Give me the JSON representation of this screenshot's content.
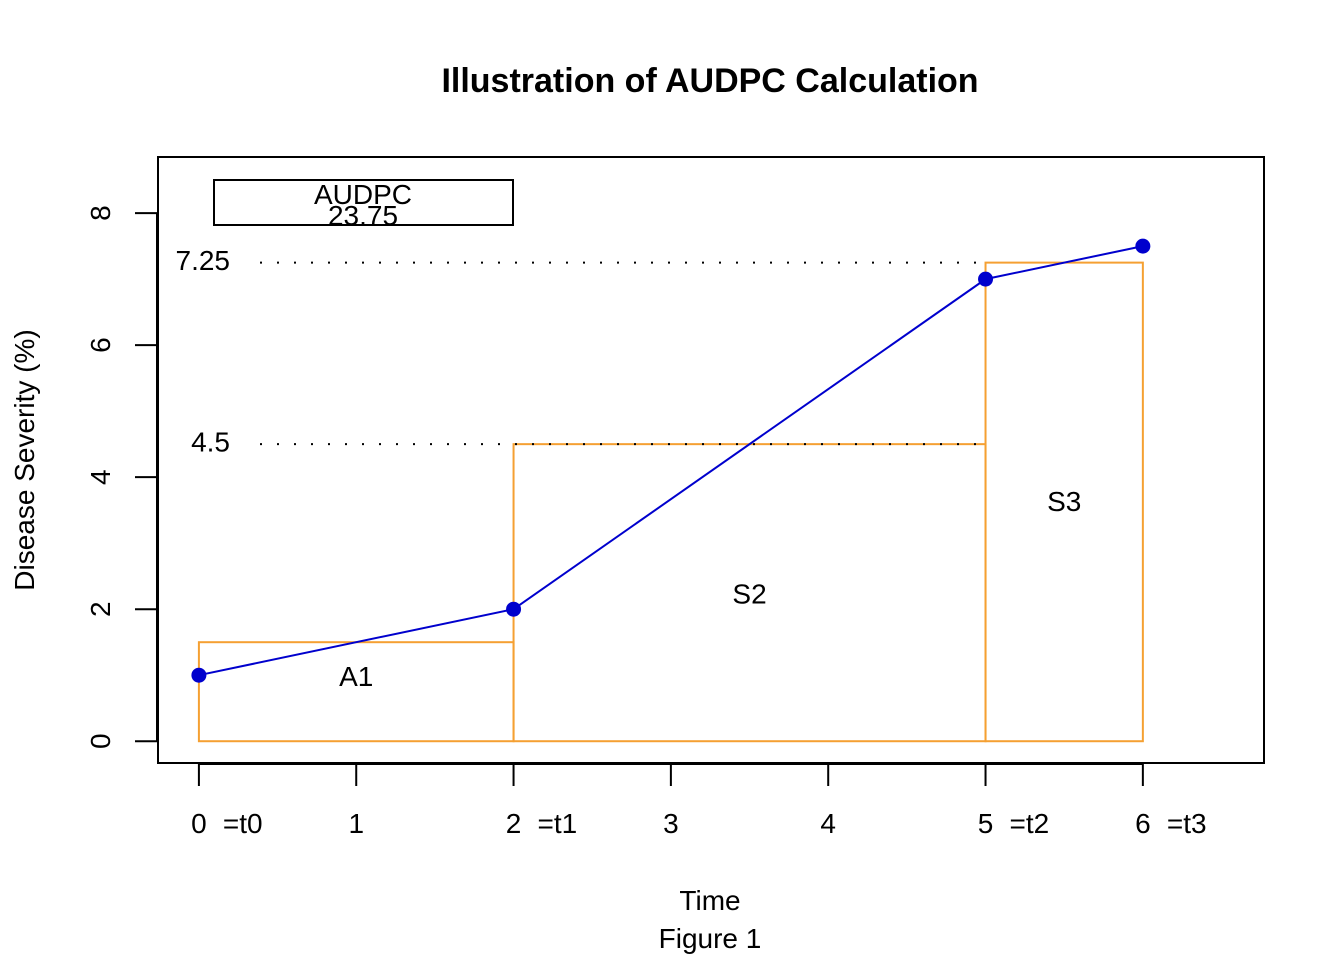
{
  "chart_data": {
    "type": "line",
    "title": "Illustration of AUDPC Calculation",
    "xlabel": "Time",
    "ylabel": "Disease Severity (%)",
    "caption": "Figure 1",
    "xlim": [
      -0.26,
      6.77
    ],
    "ylim": [
      -0.33,
      8.85
    ],
    "grid": false,
    "x_ticks": [
      0,
      1,
      2,
      3,
      4,
      5,
      6
    ],
    "x_tick_labels": [
      "0",
      "1",
      "2",
      "3",
      "4",
      "5",
      "6"
    ],
    "y_ticks": [
      0,
      2,
      4,
      6,
      8
    ],
    "y_tick_labels": [
      "0",
      "2",
      "4",
      "6",
      "8"
    ],
    "time_markers": [
      {
        "x": 0,
        "label": "=t0"
      },
      {
        "x": 2,
        "label": "=t1"
      },
      {
        "x": 5,
        "label": "=t2"
      },
      {
        "x": 6,
        "label": "=t3"
      }
    ],
    "series": [
      {
        "x": [
          0,
          2,
          5,
          6
        ],
        "y": [
          1,
          2,
          7,
          7.5
        ],
        "color": "#0000cd"
      }
    ],
    "rectangles": [
      {
        "x0": 0,
        "x1": 2,
        "height": 1.5,
        "label": "A1",
        "label_x": 1,
        "label_y": 0.95
      },
      {
        "x0": 2,
        "x1": 5,
        "height": 4.5,
        "label": "S2",
        "label_x": 3.5,
        "label_y": 2.2
      },
      {
        "x0": 5,
        "x1": 6,
        "height": 7.25,
        "label": "S3",
        "label_x": 5.5,
        "label_y": 3.6
      }
    ],
    "rect_color": "#f5a032",
    "reference_lines": [
      {
        "y": 7.25,
        "label": "7.25",
        "x_end": 5
      },
      {
        "y": 4.5,
        "label": "4.5",
        "x_end": 5
      }
    ],
    "legend": {
      "position": "top-left",
      "title": "AUDPC",
      "value": "23.75"
    }
  }
}
